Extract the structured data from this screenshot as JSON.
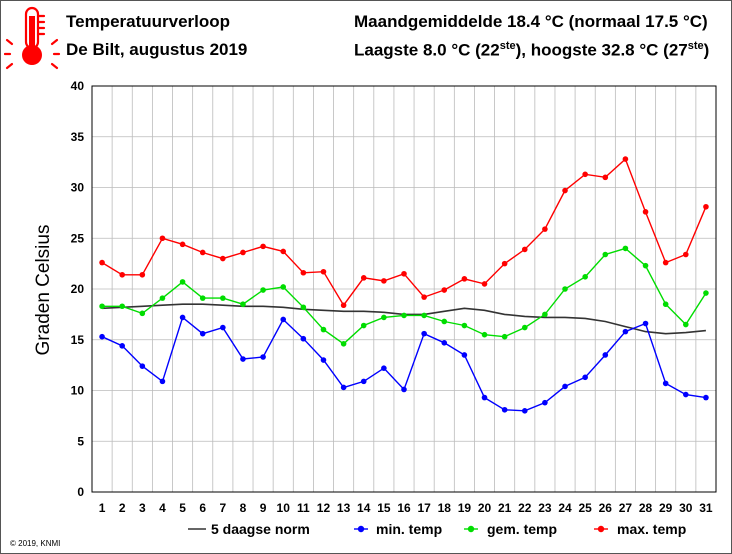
{
  "header": {
    "title": "Temperatuurverloop",
    "subtitle": "De Bilt, augustus 2019",
    "stat_mean_prefix": "Maandgemiddelde 18.4 ",
    "stat_mean_unit": "°C",
    "stat_mean_mid": " (normaal 17.5 ",
    "stat_mean_end": "°C)",
    "stat_extreme_prefix": "Laagste 8.0 ",
    "stat_extreme_unit": "°C",
    "stat_extreme_open": " (22",
    "stat_extreme_sup1": "ste",
    "stat_extreme_mid": "), hoogste 32.8 ",
    "stat_extreme_unit2": "°C",
    "stat_extreme_open2": " (27",
    "stat_extreme_sup2": "ste",
    "stat_extreme_close": ")"
  },
  "footer": {
    "copyright": "© 2019, KNMI"
  },
  "colors": {
    "norm": "#333333",
    "min": "#0000ff",
    "mean": "#00dd00",
    "max": "#ff0000",
    "thermometer": "#ff0000",
    "grid": "#bbbbbb"
  },
  "icon": "thermometer-icon",
  "chart_data": {
    "type": "line",
    "ylabel": "Graden Celsius",
    "xlabel": "",
    "ylim": [
      0,
      40
    ],
    "yticks": [
      0,
      5,
      10,
      15,
      20,
      25,
      30,
      35,
      40
    ],
    "grid": true,
    "legend_position": "bottom",
    "x": [
      1,
      2,
      3,
      4,
      5,
      6,
      7,
      8,
      9,
      10,
      11,
      12,
      13,
      14,
      15,
      16,
      17,
      18,
      19,
      20,
      21,
      22,
      23,
      24,
      25,
      26,
      27,
      28,
      29,
      30,
      31
    ],
    "series": [
      {
        "name": "5 daagse norm",
        "key": "norm",
        "markers": false,
        "values": [
          18.1,
          18.2,
          18.3,
          18.4,
          18.5,
          18.5,
          18.4,
          18.3,
          18.3,
          18.2,
          18.0,
          17.9,
          17.8,
          17.8,
          17.7,
          17.5,
          17.5,
          17.8,
          18.1,
          17.9,
          17.5,
          17.3,
          17.2,
          17.2,
          17.1,
          16.8,
          16.3,
          15.8,
          15.6,
          15.7,
          15.9
        ]
      },
      {
        "name": "min. temp",
        "key": "min",
        "markers": true,
        "values": [
          15.3,
          14.4,
          12.4,
          10.9,
          17.2,
          15.6,
          16.2,
          13.1,
          13.3,
          17.0,
          15.1,
          13.0,
          10.3,
          10.9,
          12.2,
          10.1,
          15.6,
          14.7,
          13.5,
          9.3,
          8.1,
          8.0,
          8.8,
          10.4,
          11.3,
          13.5,
          15.8,
          16.6,
          10.7,
          9.6,
          9.3
        ]
      },
      {
        "name": "gem. temp",
        "key": "mean",
        "markers": true,
        "values": [
          18.3,
          18.3,
          17.6,
          19.1,
          20.7,
          19.1,
          19.1,
          18.5,
          19.9,
          20.2,
          18.2,
          16.0,
          14.6,
          16.4,
          17.2,
          17.4,
          17.4,
          16.8,
          16.4,
          15.5,
          15.3,
          16.2,
          17.5,
          20.0,
          21.2,
          23.4,
          24.0,
          22.3,
          18.5,
          16.5,
          19.6
        ]
      },
      {
        "name": "max. temp",
        "key": "max",
        "markers": true,
        "values": [
          22.6,
          21.4,
          21.4,
          25.0,
          24.4,
          23.6,
          23.0,
          23.6,
          24.2,
          23.7,
          21.6,
          21.7,
          18.4,
          21.1,
          20.8,
          21.5,
          19.2,
          19.9,
          21.0,
          20.5,
          22.5,
          23.9,
          25.9,
          29.7,
          31.3,
          31.0,
          32.8,
          27.6,
          22.6,
          23.4,
          28.1
        ]
      }
    ]
  }
}
